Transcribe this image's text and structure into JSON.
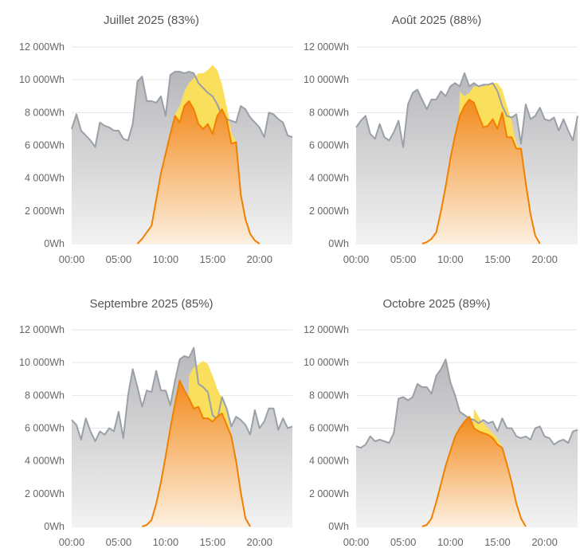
{
  "colors": {
    "grid": "#e6e6e6",
    "axis_text": "#666666",
    "title_text": "#555555",
    "consumption_line": "#9aa0a8",
    "consumption_fill_top": "#b8b8bb",
    "consumption_fill_bottom": "#f2f2f2",
    "production_yellow": "#fadf5c",
    "self_consumed_line": "#f08000",
    "self_consumed_fill_top": "#f28a1c",
    "self_consumed_fill_bottom": "#fdf0e0"
  },
  "chart_data": [
    {
      "type": "area",
      "title": "Juillet 2025 (83%)",
      "x_hours": [
        0,
        0.5,
        1,
        1.5,
        2,
        2.5,
        3,
        3.5,
        4,
        4.5,
        5,
        5.5,
        6,
        6.5,
        7,
        7.5,
        8,
        8.5,
        9,
        9.5,
        10,
        10.5,
        11,
        11.5,
        12,
        12.5,
        13,
        13.5,
        14,
        14.5,
        15,
        15.5,
        16,
        16.5,
        17,
        17.5,
        18,
        18.5,
        19,
        19.5,
        20,
        20.5,
        21,
        21.5,
        22,
        22.5,
        23,
        23.5
      ],
      "consumption": [
        7000,
        7900,
        6900,
        6600,
        6300,
        5900,
        7400,
        7200,
        7100,
        6900,
        6900,
        6400,
        6300,
        7300,
        9900,
        10200,
        8700,
        8700,
        8600,
        9000,
        7800,
        10300,
        10500,
        10500,
        10400,
        10500,
        10400,
        9800,
        9500,
        9200,
        9000,
        8500,
        7800,
        7600,
        7500,
        7400,
        8400,
        8200,
        7700,
        7400,
        7100,
        6500,
        8000,
        7900,
        7600,
        7400,
        6600,
        6500
      ],
      "production": [
        0,
        0,
        0,
        0,
        0,
        0,
        0,
        0,
        0,
        0,
        0,
        0,
        0,
        0,
        0,
        300,
        700,
        1100,
        2700,
        4300,
        5500,
        6700,
        7900,
        8400,
        9300,
        9800,
        10100,
        10400,
        10400,
        10600,
        10900,
        10600,
        9700,
        8400,
        6800,
        6200,
        3000,
        1500,
        600,
        200,
        0,
        0,
        0,
        0,
        0,
        0,
        0,
        0
      ],
      "self_consumed": [
        0,
        0,
        0,
        0,
        0,
        0,
        0,
        0,
        0,
        0,
        0,
        0,
        0,
        0,
        0,
        300,
        700,
        1100,
        2700,
        4300,
        5500,
        6700,
        7800,
        7400,
        8400,
        8700,
        8200,
        7300,
        7000,
        7300,
        6700,
        7800,
        8200,
        7600,
        6100,
        6200,
        3000,
        1500,
        600,
        200,
        0,
        0,
        0,
        0,
        0,
        0,
        0,
        0
      ],
      "ylim": [
        0,
        12000
      ],
      "yticks": [
        "0Wh",
        "2 000Wh",
        "4 000Wh",
        "6 000Wh",
        "8 000Wh",
        "10 000Wh",
        "12 000Wh"
      ],
      "xticks": [
        "00:00",
        "05:00",
        "10:00",
        "15:00",
        "20:00"
      ]
    },
    {
      "type": "area",
      "title": "Août 2025 (88%)",
      "x_hours": [
        0,
        0.5,
        1,
        1.5,
        2,
        2.5,
        3,
        3.5,
        4,
        4.5,
        5,
        5.5,
        6,
        6.5,
        7,
        7.5,
        8,
        8.5,
        9,
        9.5,
        10,
        10.5,
        11,
        11.5,
        12,
        12.5,
        13,
        13.5,
        14,
        14.5,
        15,
        15.5,
        16,
        16.5,
        17,
        17.5,
        18,
        18.5,
        19,
        19.5,
        20,
        20.5,
        21,
        21.5,
        22,
        22.5,
        23,
        23.5
      ],
      "consumption": [
        7100,
        7500,
        7800,
        6700,
        6400,
        7300,
        6500,
        6300,
        6800,
        7500,
        5900,
        8500,
        9200,
        9400,
        8800,
        8200,
        8800,
        8800,
        9300,
        9000,
        9600,
        9800,
        9600,
        10400,
        9600,
        9800,
        9600,
        9700,
        9700,
        9800,
        9300,
        8400,
        7800,
        7700,
        7900,
        6100,
        8500,
        7600,
        7800,
        8300,
        7600,
        7500,
        7700,
        6900,
        7600,
        6900,
        6300,
        7800
      ],
      "production": [
        0,
        0,
        0,
        0,
        0,
        0,
        0,
        0,
        0,
        0,
        0,
        0,
        0,
        0,
        0,
        0,
        0,
        0,
        0,
        0,
        0,
        0,
        9300,
        9000,
        9200,
        9600,
        9600,
        9600,
        9700,
        9800,
        9800,
        9400,
        8400,
        7500,
        6100,
        5700,
        3700,
        1800,
        500,
        0,
        0,
        0,
        0,
        0,
        0,
        0,
        0,
        0
      ],
      "self_consumed": [
        0,
        0,
        0,
        0,
        0,
        0,
        0,
        0,
        0,
        0,
        0,
        0,
        0,
        0,
        0,
        100,
        300,
        700,
        2000,
        3500,
        5200,
        6600,
        7800,
        8400,
        8800,
        8600,
        7800,
        7100,
        7200,
        7600,
        7000,
        8000,
        6500,
        6500,
        5800,
        5800,
        3700,
        1800,
        500,
        0,
        0,
        0,
        0,
        0,
        0,
        0,
        0,
        0
      ],
      "ylim": [
        0,
        12000
      ],
      "yticks": [
        "0Wh",
        "2 000Wh",
        "4 000Wh",
        "6 000Wh",
        "8 000Wh",
        "10 000Wh",
        "12 000Wh"
      ],
      "xticks": [
        "00:00",
        "05:00",
        "10:00",
        "15:00",
        "20:00"
      ]
    },
    {
      "type": "area",
      "title": "Septembre 2025 (85%)",
      "x_hours": [
        0,
        0.5,
        1,
        1.5,
        2,
        2.5,
        3,
        3.5,
        4,
        4.5,
        5,
        5.5,
        6,
        6.5,
        7,
        7.5,
        8,
        8.5,
        9,
        9.5,
        10,
        10.5,
        11,
        11.5,
        12,
        12.5,
        13,
        13.5,
        14,
        14.5,
        15,
        15.5,
        16,
        16.5,
        17,
        17.5,
        18,
        18.5,
        19,
        19.5,
        20,
        20.5,
        21,
        21.5,
        22,
        22.5,
        23,
        23.5
      ],
      "consumption": [
        6500,
        6200,
        5300,
        6600,
        5800,
        5200,
        5800,
        5600,
        6000,
        5800,
        7000,
        5400,
        8000,
        9600,
        8500,
        7300,
        8300,
        8200,
        9500,
        8300,
        8300,
        7400,
        8900,
        10200,
        10400,
        10300,
        10900,
        8700,
        8500,
        8200,
        6800,
        6500,
        7900,
        7200,
        6100,
        6700,
        6500,
        6200,
        5600,
        7100,
        6000,
        6400,
        7200,
        7200,
        5900,
        6600,
        6000,
        6100
      ],
      "production": [
        0,
        0,
        0,
        0,
        0,
        0,
        0,
        0,
        0,
        0,
        0,
        0,
        0,
        0,
        0,
        0,
        0,
        0,
        0,
        0,
        0,
        0,
        0,
        0,
        0,
        9200,
        9700,
        9900,
        10100,
        9900,
        9200,
        8400,
        7800,
        7000,
        5500,
        4000,
        2100,
        500,
        0,
        0,
        0,
        0,
        0,
        0,
        0,
        0,
        0,
        0
      ],
      "self_consumed": [
        0,
        0,
        0,
        0,
        0,
        0,
        0,
        0,
        0,
        0,
        0,
        0,
        0,
        0,
        0,
        0,
        100,
        400,
        1400,
        2700,
        4300,
        6000,
        7500,
        8900,
        8300,
        7800,
        7200,
        7300,
        6600,
        6600,
        6400,
        6700,
        6900,
        6200,
        5500,
        4000,
        2100,
        500,
        0,
        0,
        0,
        0,
        0,
        0,
        0,
        0,
        0,
        0
      ],
      "ylim": [
        0,
        12000
      ],
      "yticks": [
        "0Wh",
        "2 000Wh",
        "4 000Wh",
        "6 000Wh",
        "8 000Wh",
        "10 000Wh",
        "12 000Wh"
      ],
      "xticks": [
        "00:00",
        "05:00",
        "10:00",
        "15:00",
        "20:00"
      ]
    },
    {
      "type": "area",
      "title": "Octobre 2025 (89%)",
      "x_hours": [
        0,
        0.5,
        1,
        1.5,
        2,
        2.5,
        3,
        3.5,
        4,
        4.5,
        5,
        5.5,
        6,
        6.5,
        7,
        7.5,
        8,
        8.5,
        9,
        9.5,
        10,
        10.5,
        11,
        11.5,
        12,
        12.5,
        13,
        13.5,
        14,
        14.5,
        15,
        15.5,
        16,
        16.5,
        17,
        17.5,
        18,
        18.5,
        19,
        19.5,
        20,
        20.5,
        21,
        21.5,
        22,
        22.5,
        23,
        23.5
      ],
      "consumption": [
        4900,
        4800,
        5000,
        5500,
        5200,
        5300,
        5200,
        5100,
        5700,
        7800,
        7900,
        7700,
        7900,
        8700,
        8500,
        8500,
        8100,
        9200,
        9600,
        10200,
        8800,
        8000,
        7000,
        6800,
        6600,
        6500,
        6300,
        6500,
        6300,
        6400,
        5800,
        6600,
        6000,
        6000,
        5500,
        5400,
        5500,
        5300,
        6000,
        6100,
        5500,
        5400,
        5000,
        5200,
        5300,
        5100,
        5800,
        5900
      ],
      "production": [
        0,
        0,
        0,
        0,
        0,
        0,
        0,
        0,
        0,
        0,
        0,
        0,
        0,
        0,
        0,
        0,
        0,
        0,
        0,
        0,
        0,
        0,
        0,
        0,
        0,
        7200,
        6700,
        6300,
        6000,
        5700,
        5400,
        4800,
        3800,
        2700,
        1400,
        500,
        0,
        0,
        0,
        0,
        0,
        0,
        0,
        0,
        0,
        0,
        0,
        0
      ],
      "self_consumed": [
        0,
        0,
        0,
        0,
        0,
        0,
        0,
        0,
        0,
        0,
        0,
        0,
        0,
        0,
        0,
        100,
        500,
        1500,
        2600,
        3700,
        4600,
        5500,
        6000,
        6400,
        6700,
        6000,
        5800,
        5700,
        5600,
        5400,
        5000,
        4800,
        3800,
        2700,
        1400,
        500,
        0,
        0,
        0,
        0,
        0,
        0,
        0,
        0,
        0,
        0,
        0,
        0
      ],
      "ylim": [
        0,
        12000
      ],
      "yticks": [
        "0Wh",
        "2 000Wh",
        "4 000Wh",
        "6 000Wh",
        "8 000Wh",
        "10 000Wh",
        "12 000Wh"
      ],
      "xticks": [
        "00:00",
        "05:00",
        "10:00",
        "15:00",
        "20:00"
      ]
    }
  ]
}
